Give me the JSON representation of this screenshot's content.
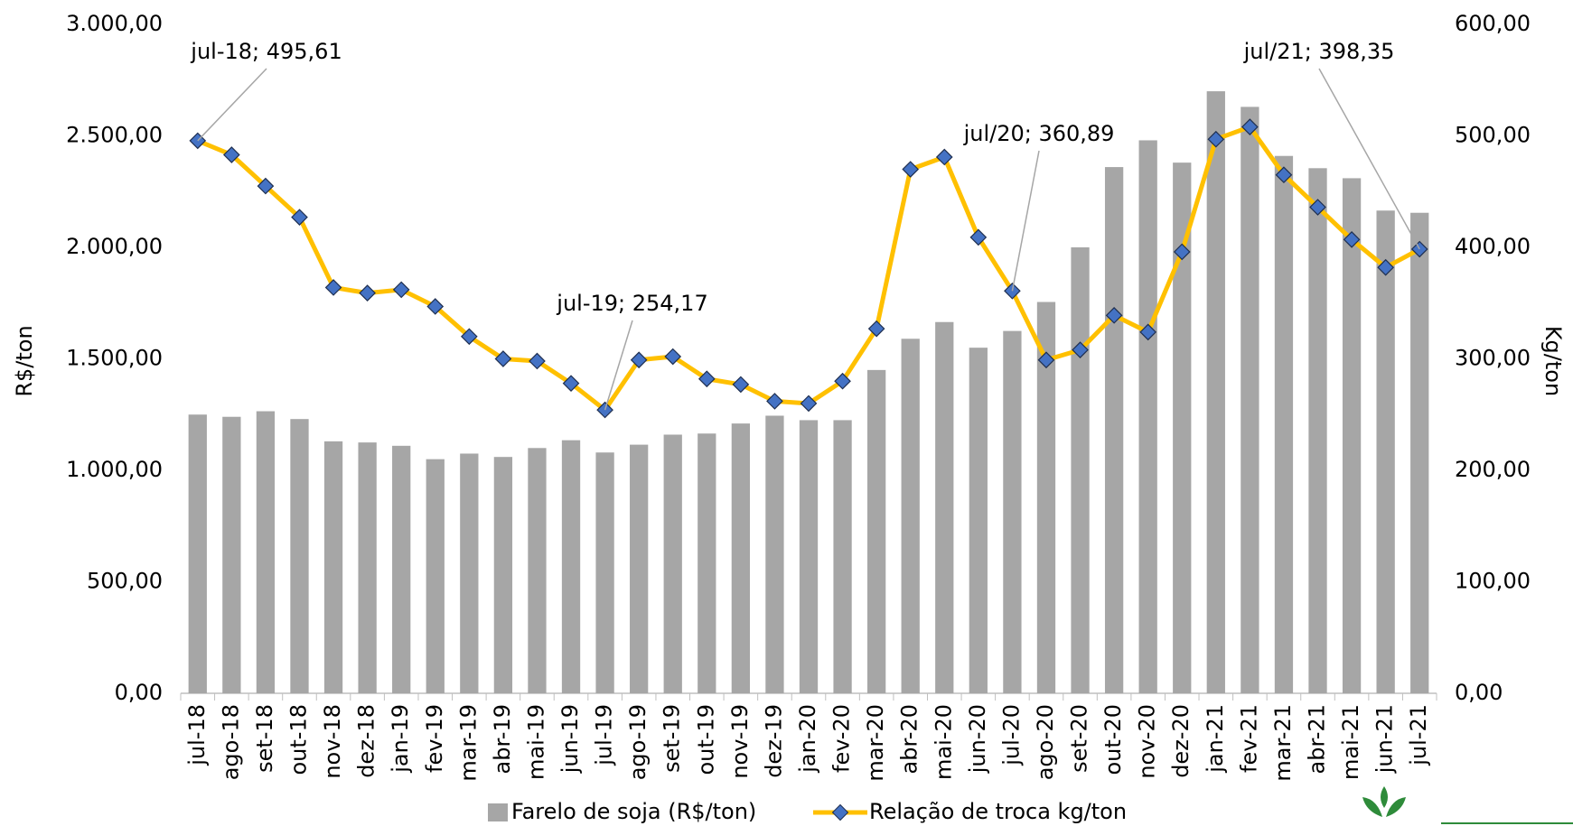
{
  "chart_data": {
    "type": "bar-line",
    "y_label": "R$/ton",
    "y2_label": "Kg/ton",
    "categories": [
      "jul-18",
      "ago-18",
      "set-18",
      "out-18",
      "nov-18",
      "dez-18",
      "jan-19",
      "fev-19",
      "mar-19",
      "abr-19",
      "mai-19",
      "jun-19",
      "jul-19",
      "ago-19",
      "set-19",
      "out-19",
      "nov-19",
      "dez-19",
      "jan-20",
      "fev-20",
      "mar-20",
      "abr-20",
      "mai-20",
      "jun-20",
      "jul-20",
      "ago-20",
      "set-20",
      "out-20",
      "nov-20",
      "dez-20",
      "jan-21",
      "fev-21",
      "mar-21",
      "abr-21",
      "mai-21",
      "jun-21",
      "jul-21"
    ],
    "series": [
      {
        "name": "Farelo de soja (R$/ton)",
        "type": "bar",
        "color": "#a6a6a6",
        "axis": "y",
        "values": [
          1250,
          1240,
          1265,
          1230,
          1130,
          1125,
          1110,
          1050,
          1075,
          1060,
          1100,
          1135,
          1080,
          1115,
          1160,
          1165,
          1210,
          1245,
          1225,
          1225,
          1450,
          1590,
          1665,
          1550,
          1625,
          1755,
          2000,
          2360,
          2480,
          2380,
          2700,
          2630,
          2410,
          2355,
          2310,
          2165,
          2155
        ]
      },
      {
        "name": "Relação de troca kg/ton",
        "type": "line",
        "color": "#ffc000",
        "marker_color": "#4472c4",
        "axis": "y2",
        "values": [
          495.61,
          483,
          455,
          427,
          364,
          359,
          362,
          347,
          320,
          300,
          298,
          278,
          254.17,
          299,
          302,
          282,
          277,
          262,
          260,
          280,
          327,
          470,
          481,
          409,
          360.89,
          299,
          308,
          339,
          324,
          396,
          497,
          508,
          465,
          436,
          407,
          382,
          398.35
        ]
      }
    ],
    "annotations": [
      "jul-18; 495,61",
      "jul-19; 254,17",
      "jul/20; 360,89",
      "jul/21; 398,35"
    ],
    "ylim": [
      0,
      3000
    ],
    "yticks": [
      {
        "value": 0,
        "label": "0,00"
      },
      {
        "value": 500,
        "label": "500,00"
      },
      {
        "value": 1000,
        "label": "1.000,00"
      },
      {
        "value": 1500,
        "label": "1.500,00"
      },
      {
        "value": 2000,
        "label": "2.000,00"
      },
      {
        "value": 2500,
        "label": "2.500,00"
      },
      {
        "value": 3000,
        "label": "3.000,00"
      }
    ],
    "y2lim": [
      0,
      600
    ],
    "y2ticks": [
      {
        "value": 0,
        "label": "0,00"
      },
      {
        "value": 100,
        "label": "100,00"
      },
      {
        "value": 200,
        "label": "200,00"
      },
      {
        "value": 300,
        "label": "300,00"
      },
      {
        "value": 400,
        "label": "400,00"
      },
      {
        "value": 500,
        "label": "500,00"
      },
      {
        "value": 600,
        "label": "600,00"
      }
    ]
  }
}
